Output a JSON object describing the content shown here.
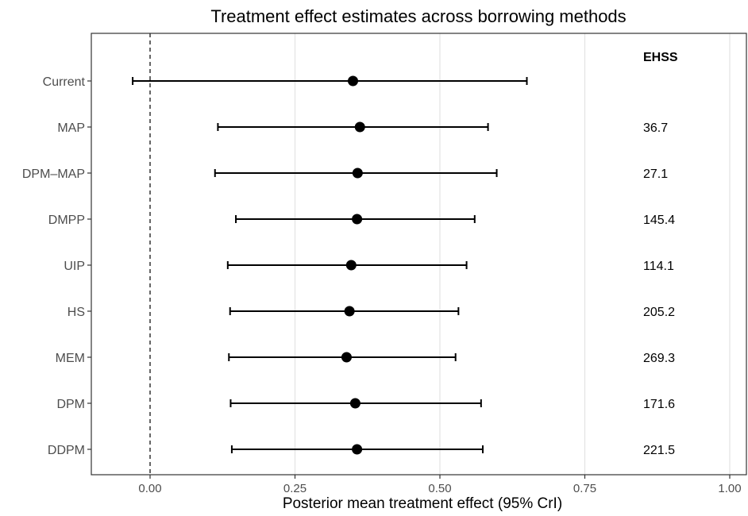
{
  "chart_data": {
    "type": "forest",
    "title": "Treatment effect estimates across borrowing methods",
    "xlabel": "Posterior mean treatment effect (95% CrI)",
    "ylabel": "",
    "xlim": [
      -0.1,
      1.0
    ],
    "x_ticks": [
      0.0,
      0.25,
      0.5,
      0.75,
      1.0
    ],
    "x_tick_labels": [
      "0.00",
      "0.25",
      "0.50",
      "0.75",
      "1.00"
    ],
    "reference_line": {
      "x": 0,
      "style": "dashed"
    },
    "grid": true,
    "ehss_header": "EHSS",
    "rows": [
      {
        "label": "Current",
        "estimate": 0.35,
        "lower": -0.03,
        "upper": 0.65,
        "ehss": ""
      },
      {
        "label": "MAP",
        "estimate": 0.362,
        "lower": 0.117,
        "upper": 0.583,
        "ehss": "36.7"
      },
      {
        "label": "DPM–MAP",
        "estimate": 0.358,
        "lower": 0.112,
        "upper": 0.598,
        "ehss": "27.1"
      },
      {
        "label": "DMPP",
        "estimate": 0.357,
        "lower": 0.148,
        "upper": 0.56,
        "ehss": "145.4"
      },
      {
        "label": "UIP",
        "estimate": 0.347,
        "lower": 0.134,
        "upper": 0.546,
        "ehss": "114.1"
      },
      {
        "label": "HS",
        "estimate": 0.344,
        "lower": 0.138,
        "upper": 0.532,
        "ehss": "205.2"
      },
      {
        "label": "MEM",
        "estimate": 0.339,
        "lower": 0.136,
        "upper": 0.527,
        "ehss": "269.3"
      },
      {
        "label": "DPM",
        "estimate": 0.354,
        "lower": 0.139,
        "upper": 0.571,
        "ehss": "171.6"
      },
      {
        "label": "DDPM",
        "estimate": 0.357,
        "lower": 0.141,
        "upper": 0.574,
        "ehss": "221.5"
      }
    ]
  }
}
